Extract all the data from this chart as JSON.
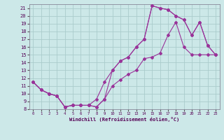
{
  "xlabel": "Windchill (Refroidissement éolien,°C)",
  "bg_color": "#cce8e8",
  "grid_color": "#aacccc",
  "line_color": "#993399",
  "xlim": [
    -0.5,
    23.5
  ],
  "ylim": [
    8,
    21.5
  ],
  "xticks": [
    0,
    1,
    2,
    3,
    4,
    5,
    6,
    7,
    8,
    9,
    10,
    11,
    12,
    13,
    14,
    15,
    16,
    17,
    18,
    19,
    20,
    21,
    22,
    23
  ],
  "yticks": [
    8,
    9,
    10,
    11,
    12,
    13,
    14,
    15,
    16,
    17,
    18,
    19,
    20,
    21
  ],
  "line1_x": [
    0,
    1,
    2,
    3,
    4,
    5,
    6,
    7,
    8,
    9,
    10,
    11,
    12,
    13,
    14,
    15,
    16,
    17,
    18,
    19,
    20,
    21,
    22,
    23
  ],
  "line1_y": [
    11.5,
    10.5,
    10.0,
    9.7,
    8.3,
    8.5,
    8.5,
    8.5,
    9.3,
    11.5,
    13.0,
    14.2,
    14.7,
    16.0,
    17.0,
    21.3,
    21.0,
    20.8,
    20.0,
    19.5,
    17.5,
    19.2,
    16.2,
    15.0
  ],
  "line2_x": [
    0,
    1,
    2,
    3,
    4,
    5,
    6,
    7,
    8,
    9,
    10,
    11,
    12,
    13,
    14,
    15,
    16,
    17,
    18,
    19,
    20,
    21,
    22,
    23
  ],
  "line2_y": [
    11.5,
    10.5,
    10.0,
    9.7,
    8.3,
    8.5,
    8.5,
    8.5,
    8.3,
    9.3,
    13.0,
    14.2,
    14.7,
    16.0,
    17.0,
    21.3,
    21.0,
    20.8,
    20.0,
    19.5,
    17.5,
    19.2,
    16.2,
    15.0
  ],
  "line3_x": [
    0,
    1,
    2,
    3,
    4,
    5,
    6,
    7,
    8,
    9,
    10,
    11,
    12,
    13,
    14,
    15,
    16,
    17,
    18,
    19,
    20,
    21,
    22,
    23
  ],
  "line3_y": [
    11.5,
    10.5,
    10.0,
    9.7,
    8.3,
    8.5,
    8.5,
    8.5,
    8.3,
    9.3,
    11.0,
    11.8,
    12.5,
    13.0,
    14.5,
    14.7,
    15.2,
    17.5,
    19.2,
    16.0,
    15.0,
    15.0,
    15.0,
    15.0
  ]
}
